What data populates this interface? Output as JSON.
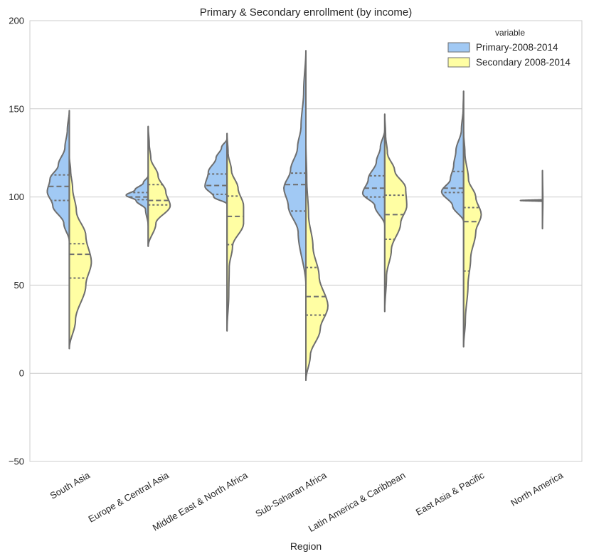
{
  "chart_data": {
    "type": "violin",
    "title": "Primary & Secondary enrollment (by income)",
    "xlabel": "Region",
    "ylabel": "",
    "ylim": [
      -50,
      200
    ],
    "yticks": [
      -50,
      0,
      50,
      100,
      150,
      200
    ],
    "ytick_labels": [
      "−50",
      "0",
      "50",
      "100",
      "150",
      "200"
    ],
    "grid": true,
    "split": true,
    "inner": "quartile",
    "legend": {
      "title": "variable",
      "position": "top-right",
      "entries": [
        "Primary-2008-2014",
        "Secondary 2008-2014"
      ]
    },
    "categories": [
      "South Asia",
      "Europe & Central Asia",
      "Middle East & North Africa",
      "Sub-Saharan Africa",
      "Latin America & Caribbean",
      "East Asia & Pacific",
      "North America"
    ],
    "series": [
      {
        "name": "Primary-2008-2014",
        "color": "#a1c9f4",
        "side": "left",
        "quartiles": [
          [
            98,
            106,
            112.5
          ],
          [
            98.5,
            100,
            102.5
          ],
          [
            101.5,
            106.5,
            113
          ],
          [
            92,
            107,
            113.5
          ],
          [
            100,
            105,
            112
          ],
          [
            102.5,
            105,
            114.5
          ],
          [
            98,
            98,
            98
          ]
        ],
        "range": [
          [
            75,
            149
          ],
          [
            84,
            112
          ],
          [
            96,
            133
          ],
          [
            50,
            183
          ],
          [
            84,
            138
          ],
          [
            86,
            160
          ],
          [
            97.5,
            98.5
          ]
        ],
        "profile": [
          [
            [
              75,
              0
            ],
            [
              85,
              0.25
            ],
            [
              95,
              0.75
            ],
            [
              103,
              1
            ],
            [
              110,
              0.88
            ],
            [
              118,
              0.5
            ],
            [
              128,
              0.2
            ],
            [
              138,
              0.09
            ],
            [
              149,
              0
            ]
          ],
          [
            [
              84,
              0
            ],
            [
              93,
              0.12
            ],
            [
              98,
              0.55
            ],
            [
              101,
              1
            ],
            [
              104,
              0.6
            ],
            [
              108,
              0.22
            ],
            [
              112,
              0
            ]
          ],
          [
            [
              96,
              0
            ],
            [
              100,
              0.6
            ],
            [
              106,
              1
            ],
            [
              114,
              0.85
            ],
            [
              122,
              0.5
            ],
            [
              128,
              0.25
            ],
            [
              133,
              0
            ]
          ],
          [
            [
              50,
              0
            ],
            [
              80,
              0.35
            ],
            [
              95,
              0.8
            ],
            [
              105,
              1
            ],
            [
              115,
              0.7
            ],
            [
              128,
              0.38
            ],
            [
              140,
              0.22
            ],
            [
              160,
              0.1
            ],
            [
              183,
              0
            ]
          ],
          [
            [
              84,
              0
            ],
            [
              95,
              0.45
            ],
            [
              102,
              1
            ],
            [
              110,
              0.75
            ],
            [
              120,
              0.38
            ],
            [
              128,
              0.2
            ],
            [
              138,
              0
            ]
          ],
          [
            [
              86,
              0
            ],
            [
              95,
              0.5
            ],
            [
              103,
              1
            ],
            [
              110,
              0.6
            ],
            [
              118,
              0.45
            ],
            [
              126,
              0.35
            ],
            [
              138,
              0.1
            ],
            [
              150,
              0.02
            ],
            [
              160,
              0
            ]
          ],
          [
            [
              97.5,
              0
            ],
            [
              98,
              1
            ],
            [
              98.5,
              0
            ]
          ]
        ]
      },
      {
        "name": "Secondary 2008-2014",
        "color": "#fffea3",
        "side": "right",
        "quartiles": [
          [
            54,
            67.5,
            73.5
          ],
          [
            95.5,
            98,
            107
          ],
          [
            73,
            89,
            100.5
          ],
          [
            33,
            43.5,
            60
          ],
          [
            76,
            90,
            101
          ],
          [
            58,
            86,
            94
          ],
          [
            98,
            98,
            98
          ]
        ],
        "range": [
          [
            14,
            123
          ],
          [
            72,
            140
          ],
          [
            24,
            136
          ],
          [
            -4,
            131
          ],
          [
            35,
            147
          ],
          [
            15,
            137
          ],
          [
            82,
            115
          ]
        ],
        "profile": [
          [
            [
              14,
              0
            ],
            [
              30,
              0.28
            ],
            [
              50,
              0.75
            ],
            [
              63,
              1
            ],
            [
              78,
              0.75
            ],
            [
              92,
              0.32
            ],
            [
              105,
              0.15
            ],
            [
              115,
              0.06
            ],
            [
              123,
              0
            ]
          ],
          [
            [
              72,
              0
            ],
            [
              85,
              0.35
            ],
            [
              95,
              1
            ],
            [
              103,
              0.8
            ],
            [
              112,
              0.45
            ],
            [
              122,
              0.12
            ],
            [
              130,
              0.05
            ],
            [
              140,
              0
            ]
          ],
          [
            [
              24,
              0
            ],
            [
              45,
              0.08
            ],
            [
              60,
              0.1
            ],
            [
              72,
              0.25
            ],
            [
              85,
              0.75
            ],
            [
              95,
              0.75
            ],
            [
              105,
              0.5
            ],
            [
              115,
              0.2
            ],
            [
              125,
              0.05
            ],
            [
              136,
              0
            ]
          ],
          [
            [
              -4,
              0
            ],
            [
              10,
              0.2
            ],
            [
              25,
              0.65
            ],
            [
              38,
              1
            ],
            [
              55,
              0.6
            ],
            [
              72,
              0.32
            ],
            [
              90,
              0.12
            ],
            [
              110,
              0.04
            ],
            [
              131,
              0
            ]
          ],
          [
            [
              35,
              0
            ],
            [
              55,
              0.08
            ],
            [
              70,
              0.3
            ],
            [
              85,
              0.72
            ],
            [
              95,
              1
            ],
            [
              105,
              0.95
            ],
            [
              115,
              0.45
            ],
            [
              125,
              0.12
            ],
            [
              135,
              0.04
            ],
            [
              147,
              0
            ]
          ],
          [
            [
              15,
              0
            ],
            [
              30,
              0.08
            ],
            [
              50,
              0.2
            ],
            [
              65,
              0.32
            ],
            [
              80,
              0.55
            ],
            [
              90,
              0.8
            ],
            [
              100,
              0.55
            ],
            [
              110,
              0.22
            ],
            [
              125,
              0.06
            ],
            [
              137,
              0
            ]
          ],
          [
            [
              82,
              0
            ],
            [
              98,
              0.02
            ],
            [
              115,
              0
            ]
          ]
        ]
      }
    ]
  }
}
